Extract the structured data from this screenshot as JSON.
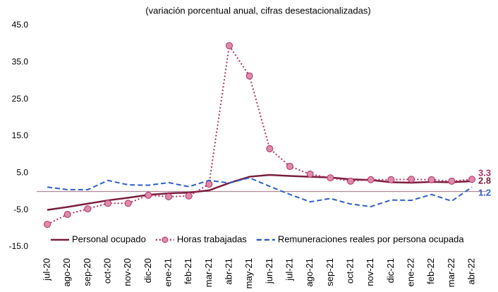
{
  "chart_data": {
    "type": "line",
    "subtitle": "(variación porcentual anual, cifras desestacionalizadas)",
    "categories": [
      "jul-20",
      "ago-20",
      "sep-20",
      "oct-20",
      "nov-20",
      "dic-20",
      "ene-21",
      "feb-21",
      "mar-21",
      "abr-21",
      "may-21",
      "jun-21",
      "jul-21",
      "ago-21",
      "sep-21",
      "oct-21",
      "nov-21",
      "dic-21",
      "ene-22",
      "feb-22",
      "mar-22",
      "abr-22"
    ],
    "series": [
      {
        "name": "Personal ocupado",
        "color": "#7a1e3c",
        "style": "solid",
        "values": [
          -5.0,
          -4.2,
          -3.3,
          -2.4,
          -1.7,
          -0.9,
          -0.5,
          -0.3,
          0.3,
          2.3,
          4.0,
          4.5,
          4.2,
          4.0,
          3.8,
          3.3,
          3.1,
          2.5,
          2.4,
          2.6,
          2.5,
          2.8
        ]
      },
      {
        "name": "Horas trabajadas",
        "color": "#b0306a",
        "style": "dotted",
        "marker_color": "#e08aaa",
        "values": [
          -8.9,
          -6.2,
          -4.7,
          -3.2,
          -3.2,
          -1.0,
          -1.4,
          -1.2,
          2.0,
          39.5,
          31.3,
          11.6,
          6.8,
          4.7,
          3.7,
          2.8,
          3.2,
          3.2,
          3.3,
          3.2,
          2.8,
          3.3
        ]
      },
      {
        "name": "Remuneraciones reales por persona ocupada",
        "color": "#2f5fc8",
        "style": "dashed",
        "values": [
          1.2,
          0.5,
          0.5,
          3.0,
          1.8,
          1.7,
          2.4,
          1.3,
          3.0,
          2.3,
          3.7,
          1.4,
          -0.8,
          -2.8,
          -1.9,
          -3.4,
          -4.1,
          -2.3,
          -2.4,
          -0.8,
          -2.6,
          1.2
        ]
      }
    ],
    "ylim": [
      -15,
      45
    ],
    "yticks": [
      {
        "value": -15,
        "label": "-15.0"
      },
      {
        "value": -5,
        "label": "-5.0"
      },
      {
        "value": 5,
        "label": "5.0"
      },
      {
        "value": 15,
        "label": "15.0"
      },
      {
        "value": 25,
        "label": "25.0"
      },
      {
        "value": 35,
        "label": "35.0"
      },
      {
        "value": 45,
        "label": "45.0"
      }
    ],
    "zero_line_color": "#b08a9a",
    "grid": false,
    "legend": "bottom"
  }
}
